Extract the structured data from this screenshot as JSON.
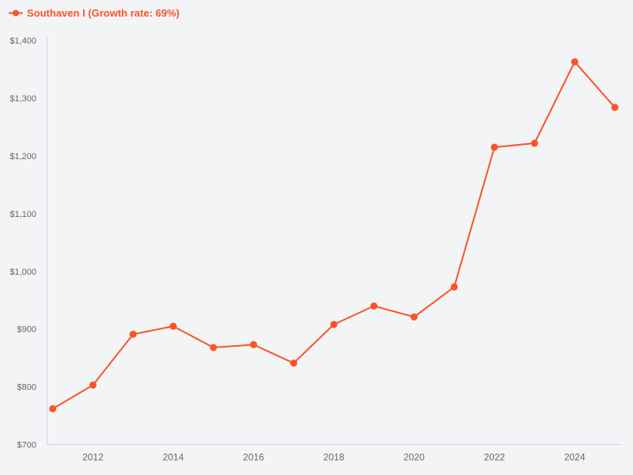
{
  "legend": {
    "label": "Southaven I (Growth rate: 69%)"
  },
  "colors": {
    "series": "#fb5327",
    "axis_line": "#ccd6eb",
    "tick_label": "#666666",
    "background": "#f3f4f6"
  },
  "chart_data": {
    "type": "line",
    "title": "",
    "xlabel": "",
    "ylabel": "",
    "legend_position": "top-left",
    "grid": false,
    "xlim": [
      2011,
      2025
    ],
    "ylim": [
      700,
      1400
    ],
    "series": [
      {
        "name": "Southaven I (Growth rate: 69%)",
        "growth_rate": "69%",
        "marker": "circle",
        "x": [
          2011,
          2012,
          2013,
          2014,
          2015,
          2016,
          2017,
          2018,
          2019,
          2020,
          2021,
          2022,
          2023,
          2024,
          2025
        ],
        "values": [
          762,
          803,
          891,
          905,
          868,
          873,
          841,
          908,
          940,
          921,
          973,
          1215,
          1222,
          1363,
          1284
        ]
      }
    ],
    "x_ticks": [
      {
        "value": 2012,
        "label": "2012"
      },
      {
        "value": 2014,
        "label": "2014"
      },
      {
        "value": 2016,
        "label": "2016"
      },
      {
        "value": 2018,
        "label": "2018"
      },
      {
        "value": 2020,
        "label": "2020"
      },
      {
        "value": 2022,
        "label": "2022"
      },
      {
        "value": 2024,
        "label": "2024"
      }
    ],
    "y_ticks": [
      {
        "value": 700,
        "label": "$700"
      },
      {
        "value": 800,
        "label": "$800"
      },
      {
        "value": 900,
        "label": "$900"
      },
      {
        "value": 1000,
        "label": "$1,000"
      },
      {
        "value": 1100,
        "label": "$1,100"
      },
      {
        "value": 1200,
        "label": "$1,200"
      },
      {
        "value": 1300,
        "label": "$1,300"
      },
      {
        "value": 1400,
        "label": "$1,400"
      }
    ]
  }
}
